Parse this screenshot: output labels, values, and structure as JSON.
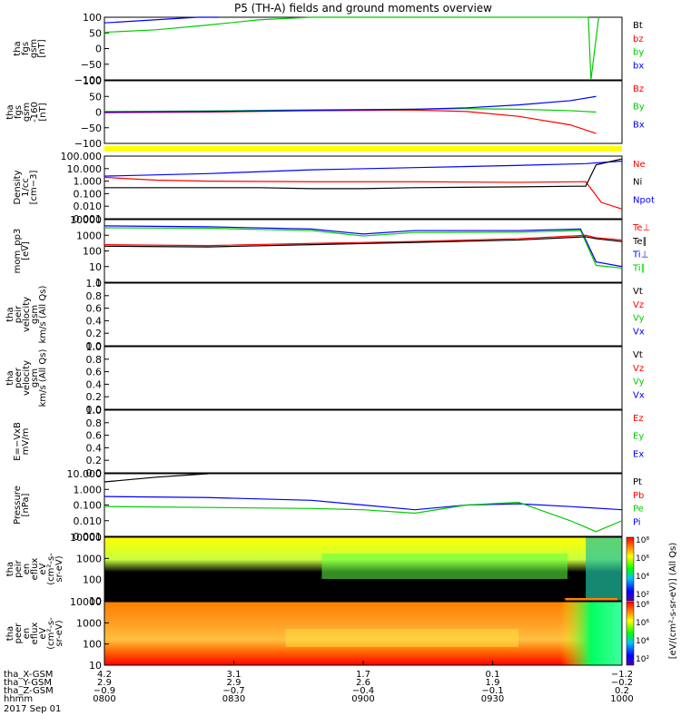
{
  "title": "P5 (TH-A) fields and ground moments overview",
  "colors": {
    "black": "#000000",
    "red": "#ff0000",
    "green": "#00cc00",
    "blue": "#0000ff",
    "yellow": "#ffff00",
    "orange": "#ff8000"
  },
  "chart_data": [
    {
      "type": "line",
      "panel": "fgs_gsm",
      "ylabel": [
        "tha",
        "fgs",
        "gsm",
        "[nT]"
      ],
      "ylim": [
        -100,
        100
      ],
      "ticks": [
        "100",
        "50",
        "0",
        "−50",
        "−100"
      ],
      "legend": [
        {
          "name": "Bt",
          "color": "#000000"
        },
        {
          "name": "bz",
          "color": "#ff0000"
        },
        {
          "name": "by",
          "color": "#00cc00"
        },
        {
          "name": "bx",
          "color": "#0000ff"
        }
      ],
      "series": [
        {
          "name": "bx",
          "color": "#0000ff",
          "x": [
            0,
            0.1,
            0.18,
            0.22
          ],
          "y": [
            82,
            92,
            100,
            105
          ]
        },
        {
          "name": "by",
          "color": "#00cc00",
          "x": [
            0,
            0.1,
            0.2,
            0.3,
            0.4,
            0.935,
            0.94,
            0.955
          ],
          "y": [
            52,
            60,
            75,
            92,
            105,
            105,
            -100,
            100
          ]
        }
      ]
    },
    {
      "type": "line",
      "panel": "fgs_gsm_dc",
      "ylabel": [
        "tha",
        "fgs",
        "gsm",
        "-160",
        "[nT]"
      ],
      "ylim": [
        -120,
        100
      ],
      "ticks": [
        "100",
        "50",
        "0",
        "−50",
        "−100"
      ],
      "legend": [
        {
          "name": "Bz",
          "color": "#ff0000"
        },
        {
          "name": "By",
          "color": "#00cc00"
        },
        {
          "name": "Bx",
          "color": "#0000ff"
        }
      ],
      "series": [
        {
          "name": "Bz",
          "color": "#ff0000",
          "x": [
            0,
            0.2,
            0.4,
            0.6,
            0.7,
            0.8,
            0.9,
            0.95
          ],
          "y": [
            -12,
            -10,
            -5,
            -3,
            -8,
            -25,
            -55,
            -85
          ]
        },
        {
          "name": "By",
          "color": "#00cc00",
          "x": [
            0,
            0.2,
            0.4,
            0.6,
            0.7,
            0.8,
            0.9,
            0.95
          ],
          "y": [
            -8,
            -6,
            -2,
            0,
            2,
            0,
            -5,
            -10
          ]
        },
        {
          "name": "Bx",
          "color": "#0000ff",
          "x": [
            0,
            0.2,
            0.4,
            0.6,
            0.7,
            0.8,
            0.9,
            0.95
          ],
          "y": [
            -10,
            -8,
            -4,
            0,
            5,
            15,
            30,
            45
          ]
        }
      ]
    },
    {
      "type": "line",
      "panel": "density",
      "log": true,
      "ylabel": [
        "Density",
        "1/cc",
        "[cm−3]"
      ],
      "ylim": [
        0.001,
        100
      ],
      "ticks": [
        "100.000",
        "10.000",
        "1.000",
        "0.100",
        "0.010",
        "0.001"
      ],
      "legend": [
        {
          "name": "Ne",
          "color": "#ff0000"
        },
        {
          "name": "Ni",
          "color": "#000000"
        },
        {
          "name": "Npot",
          "color": "#0000ff"
        }
      ],
      "series": [
        {
          "name": "Npot",
          "color": "#0000ff",
          "x": [
            0,
            0.2,
            0.4,
            0.6,
            0.8,
            0.93,
            1
          ],
          "y": [
            2.5,
            4,
            8,
            12,
            18,
            25,
            40
          ]
        },
        {
          "name": "Ne",
          "color": "#ff0000",
          "x": [
            0,
            0.1,
            0.2,
            0.4,
            0.6,
            0.8,
            0.93,
            0.96,
            1.0
          ],
          "y": [
            2,
            1.2,
            1.0,
            0.9,
            0.9,
            0.8,
            0.9,
            0.02,
            0.006
          ]
        },
        {
          "name": "Ni",
          "color": "#000000",
          "x": [
            0,
            0.1,
            0.3,
            0.4,
            0.5,
            0.6,
            0.8,
            0.93,
            0.95,
            1.0
          ],
          "y": [
            0.3,
            0.3,
            0.3,
            0.25,
            0.25,
            0.3,
            0.35,
            0.4,
            20,
            60
          ]
        }
      ]
    },
    {
      "type": "line",
      "panel": "temperature",
      "log": true,
      "ylabel": [
        "mom_pp3",
        "[eV]"
      ],
      "ylim": [
        1,
        10000
      ],
      "ticks": [
        "10000",
        "1000",
        "100",
        "10",
        "1"
      ],
      "legend": [
        {
          "name": "Te⊥",
          "color": "#ff0000"
        },
        {
          "name": "Te∥",
          "color": "#000000"
        },
        {
          "name": "Ti⊥",
          "color": "#0000ff"
        },
        {
          "name": "Ti∥",
          "color": "#00cc00"
        }
      ],
      "series": [
        {
          "name": "Ti⊥",
          "color": "#0000ff",
          "x": [
            0,
            0.2,
            0.4,
            0.5,
            0.6,
            0.8,
            0.92,
            0.95,
            1.0
          ],
          "y": [
            4000,
            3500,
            2500,
            1200,
            2000,
            2000,
            2500,
            20,
            10
          ]
        },
        {
          "name": "Ti∥",
          "color": "#00cc00",
          "x": [
            0,
            0.2,
            0.4,
            0.5,
            0.6,
            0.8,
            0.92,
            0.95,
            1.0
          ],
          "y": [
            3000,
            2800,
            2000,
            900,
            1500,
            1600,
            2000,
            12,
            8
          ]
        },
        {
          "name": "Te⊥",
          "color": "#ff0000",
          "x": [
            0,
            0.2,
            0.4,
            0.6,
            0.8,
            0.93,
            0.95,
            1.0
          ],
          "y": [
            250,
            220,
            300,
            400,
            600,
            1000,
            700,
            500
          ]
        },
        {
          "name": "Te∥",
          "color": "#000000",
          "x": [
            0,
            0.2,
            0.4,
            0.6,
            0.8,
            0.93,
            0.95,
            1.0
          ],
          "y": [
            200,
            180,
            250,
            350,
            500,
            800,
            600,
            400
          ]
        }
      ]
    },
    {
      "type": "line",
      "panel": "peir_velocity",
      "ylabel": [
        "tha",
        "peir",
        "velocity",
        "gsm",
        "km/s (All Qs)"
      ],
      "ylim": [
        0,
        1
      ],
      "ticks": [
        "1.0",
        "0.8",
        "0.6",
        "0.4",
        "0.2",
        "0.0"
      ],
      "legend": [
        {
          "name": "Vt",
          "color": "#000000"
        },
        {
          "name": "Vz",
          "color": "#ff0000"
        },
        {
          "name": "Vy",
          "color": "#00cc00"
        },
        {
          "name": "Vx",
          "color": "#0000ff"
        }
      ],
      "series": []
    },
    {
      "type": "line",
      "panel": "peer_velocity",
      "ylabel": [
        "tha",
        "peer",
        "velocity",
        "gsm",
        "km/s (All Qs)"
      ],
      "ylim": [
        0,
        1
      ],
      "ticks": [
        "1.0",
        "0.8",
        "0.6",
        "0.4",
        "0.2",
        "0.0"
      ],
      "legend": [
        {
          "name": "Vt",
          "color": "#000000"
        },
        {
          "name": "Vz",
          "color": "#ff0000"
        },
        {
          "name": "Vy",
          "color": "#00cc00"
        },
        {
          "name": "Vx",
          "color": "#0000ff"
        }
      ],
      "series": []
    },
    {
      "type": "line",
      "panel": "efield",
      "ylabel": [
        "E=−VxB",
        "mV/m"
      ],
      "ylim": [
        0,
        1
      ],
      "ticks": [
        "1.0",
        "0.8",
        "0.6",
        "0.4",
        "0.2",
        "0.0"
      ],
      "legend": [
        {
          "name": "Ez",
          "color": "#ff0000"
        },
        {
          "name": "Ey",
          "color": "#00cc00"
        },
        {
          "name": "Ex",
          "color": "#0000ff"
        }
      ],
      "series": []
    },
    {
      "type": "line",
      "panel": "pressure",
      "log": true,
      "ylabel": [
        "Pressure",
        "[nPa]"
      ],
      "ylim": [
        0.001,
        10
      ],
      "ticks": [
        "10.000",
        "1.000",
        "0.100",
        "0.010",
        "0.001"
      ],
      "legend": [
        {
          "name": "Pt",
          "color": "#000000"
        },
        {
          "name": "Pb",
          "color": "#ff0000"
        },
        {
          "name": "Pe",
          "color": "#00cc00"
        },
        {
          "name": "Pi",
          "color": "#0000ff"
        }
      ],
      "series": [
        {
          "name": "Pt",
          "color": "#000000",
          "x": [
            0,
            0.1,
            0.2
          ],
          "y": [
            3,
            6,
            12
          ]
        },
        {
          "name": "Pi",
          "color": "#0000ff",
          "x": [
            0,
            0.2,
            0.4,
            0.5,
            0.6,
            0.7,
            0.8,
            0.9,
            1.0
          ],
          "y": [
            0.35,
            0.3,
            0.2,
            0.1,
            0.05,
            0.1,
            0.12,
            0.08,
            0.05
          ]
        },
        {
          "name": "Pe",
          "color": "#00cc00",
          "x": [
            0,
            0.2,
            0.4,
            0.5,
            0.6,
            0.7,
            0.8,
            0.9,
            0.95,
            1.0
          ],
          "y": [
            0.08,
            0.07,
            0.06,
            0.05,
            0.03,
            0.1,
            0.15,
            0.01,
            0.002,
            0.01
          ]
        }
      ]
    },
    {
      "type": "heatmap",
      "panel": "peir_spectrogram",
      "ylabel": [
        "tha",
        "peir",
        "en",
        "eflux",
        "eV",
        "(cm²-s-",
        "sr-eV)"
      ],
      "ticks": [
        "10000",
        "1000",
        "100",
        "10"
      ],
      "ylim": [
        10,
        30000
      ]
    },
    {
      "type": "heatmap",
      "panel": "peer_spectrogram",
      "ylabel": [
        "tha",
        "peer",
        "en",
        "eflux",
        "eV",
        "(cm²-s-",
        "sr-eV)"
      ],
      "ticks": [
        "10000",
        "1000",
        "100",
        "10"
      ],
      "ylim": [
        10,
        30000
      ]
    }
  ],
  "colorbar": {
    "labels": [
      "10⁸",
      "10⁶",
      "10⁴",
      "10²",
      "10⁸",
      "10⁶",
      "10⁴",
      "10²"
    ],
    "unit": "[eV/(cm²-s-sr-eV)] (All Qs)"
  },
  "xaxis": {
    "rows": [
      {
        "label": "tha_X-GSM",
        "values": [
          "4.2",
          "3.1",
          "1.7",
          "0.1",
          "−1.2"
        ]
      },
      {
        "label": "tha_Y-GSM",
        "values": [
          "2.9",
          "2.9",
          "2.6",
          "1.9",
          "−0.2"
        ]
      },
      {
        "label": "tha_Z-GSM",
        "values": [
          "−0.9",
          "−0.7",
          "−0.4",
          "−0.1",
          "0.2"
        ]
      },
      {
        "label": "hhmm",
        "values": [
          "0800",
          "0830",
          "0900",
          "0930",
          "1000"
        ]
      }
    ],
    "date": "2017 Sep 01"
  }
}
